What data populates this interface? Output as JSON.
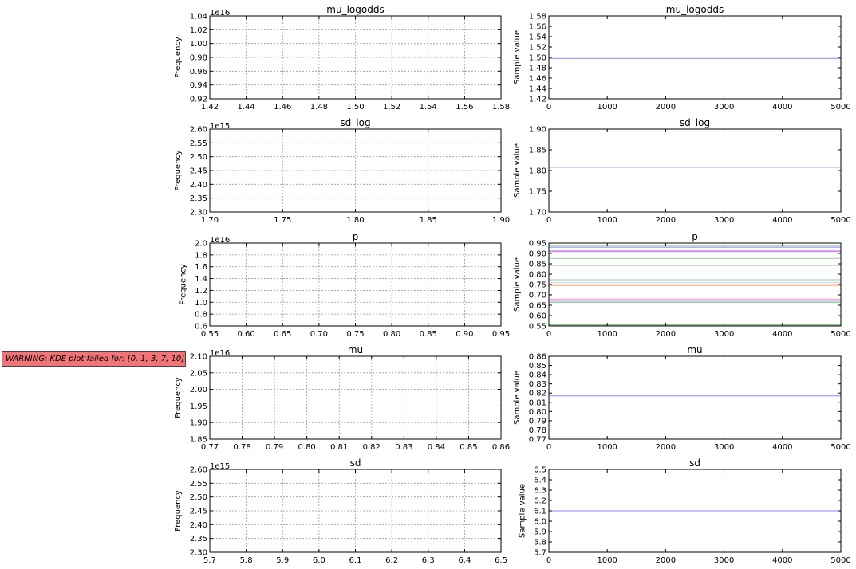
{
  "warning": "WARNING: KDE plot failed for: [0, 1, 3, 7, 10]",
  "chart_data": [
    {
      "type": "histogram",
      "title": "mu_logodds",
      "ylabel": "Frequency",
      "offset": "1e16",
      "xticks": [
        "1.42",
        "1.44",
        "1.46",
        "1.48",
        "1.50",
        "1.52",
        "1.54",
        "1.56",
        "1.58"
      ],
      "yticks": [
        "0.92",
        "0.94",
        "0.96",
        "0.98",
        "1.00",
        "1.02",
        "1.04"
      ],
      "grid": true,
      "series": []
    },
    {
      "type": "line",
      "title": "mu_logodds",
      "ylabel": "Sample value",
      "xticks": [
        "0",
        "1000",
        "2000",
        "3000",
        "4000",
        "5000"
      ],
      "yticks": [
        "1.42",
        "1.44",
        "1.46",
        "1.48",
        "1.50",
        "1.52",
        "1.54",
        "1.56",
        "1.58"
      ],
      "xlim": [
        0,
        5000
      ],
      "ylim": [
        1.42,
        1.58
      ],
      "grid": false,
      "series": [
        {
          "value": 1.498,
          "color": "#8888ff"
        }
      ]
    },
    {
      "type": "histogram",
      "title": "sd_log",
      "ylabel": "Frequency",
      "offset": "1e15",
      "xticks": [
        "1.70",
        "1.75",
        "1.80",
        "1.85",
        "1.90"
      ],
      "yticks": [
        "2.30",
        "2.35",
        "2.40",
        "2.45",
        "2.50",
        "2.55",
        "2.60"
      ],
      "grid": true,
      "series": []
    },
    {
      "type": "line",
      "title": "sd_log",
      "ylabel": "Sample value",
      "xticks": [
        "0",
        "1000",
        "2000",
        "3000",
        "4000",
        "5000"
      ],
      "yticks": [
        "1.70",
        "1.75",
        "1.80",
        "1.85",
        "1.90"
      ],
      "xlim": [
        0,
        5000
      ],
      "ylim": [
        1.7,
        1.9
      ],
      "grid": false,
      "series": [
        {
          "value": 1.808,
          "color": "#8888ff"
        }
      ]
    },
    {
      "type": "histogram",
      "title": "p",
      "ylabel": "Frequency",
      "offset": "1e16",
      "xticks": [
        "0.55",
        "0.60",
        "0.65",
        "0.70",
        "0.75",
        "0.80",
        "0.85",
        "0.90",
        "0.95"
      ],
      "yticks": [
        "0.6",
        "0.8",
        "1.0",
        "1.2",
        "1.4",
        "1.6",
        "1.8",
        "2.0"
      ],
      "grid": true,
      "series": []
    },
    {
      "type": "line",
      "title": "p",
      "ylabel": "Sample value",
      "xticks": [
        "0",
        "1000",
        "2000",
        "3000",
        "4000",
        "5000"
      ],
      "yticks": [
        "0.55",
        "0.60",
        "0.65",
        "0.70",
        "0.75",
        "0.80",
        "0.85",
        "0.90",
        "0.95"
      ],
      "xlim": [
        0,
        5000
      ],
      "ylim": [
        0.55,
        0.95
      ],
      "grid": false,
      "series": [
        {
          "value": 0.935,
          "color": "#99cc99"
        },
        {
          "value": 0.93,
          "color": "#9999ff"
        },
        {
          "value": 0.912,
          "color": "#ff66cc"
        },
        {
          "value": 0.909,
          "color": "#9999ff"
        },
        {
          "value": 0.876,
          "color": "#99cc99"
        },
        {
          "value": 0.843,
          "color": "#66aa66"
        },
        {
          "value": 0.773,
          "color": "#99cc99"
        },
        {
          "value": 0.76,
          "color": "#ccccff"
        },
        {
          "value": 0.751,
          "color": "#ffdd88"
        },
        {
          "value": 0.745,
          "color": "#ffaaaa"
        },
        {
          "value": 0.68,
          "color": "#ff99cc"
        },
        {
          "value": 0.673,
          "color": "#9999ff"
        },
        {
          "value": 0.665,
          "color": "#66aa66"
        },
        {
          "value": 0.555,
          "color": "#66aa66"
        }
      ]
    },
    {
      "type": "histogram",
      "title": "mu",
      "ylabel": "Frequency",
      "offset": "1e16",
      "xticks": [
        "0.77",
        "0.78",
        "0.79",
        "0.80",
        "0.81",
        "0.82",
        "0.83",
        "0.84",
        "0.85",
        "0.86"
      ],
      "yticks": [
        "1.85",
        "1.90",
        "1.95",
        "2.00",
        "2.05",
        "2.10"
      ],
      "grid": true,
      "series": []
    },
    {
      "type": "line",
      "title": "mu",
      "ylabel": "Sample value",
      "xticks": [
        "0",
        "1000",
        "2000",
        "3000",
        "4000",
        "5000"
      ],
      "yticks": [
        "0.77",
        "0.78",
        "0.79",
        "0.80",
        "0.81",
        "0.82",
        "0.83",
        "0.84",
        "0.85",
        "0.86"
      ],
      "xlim": [
        0,
        5000
      ],
      "ylim": [
        0.77,
        0.86
      ],
      "grid": false,
      "series": [
        {
          "value": 0.817,
          "color": "#8888ff"
        }
      ]
    },
    {
      "type": "histogram",
      "title": "sd",
      "ylabel": "Frequency",
      "offset": "1e15",
      "xticks": [
        "5.7",
        "5.8",
        "5.9",
        "6.0",
        "6.1",
        "6.2",
        "6.3",
        "6.4",
        "6.5"
      ],
      "yticks": [
        "2.30",
        "2.35",
        "2.40",
        "2.45",
        "2.50",
        "2.55",
        "2.60"
      ],
      "grid": true,
      "series": []
    },
    {
      "type": "line",
      "title": "sd",
      "ylabel": "Sample value",
      "xticks": [
        "0",
        "1000",
        "2000",
        "3000",
        "4000",
        "5000"
      ],
      "yticks": [
        "5.7",
        "5.8",
        "5.9",
        "6.0",
        "6.1",
        "6.2",
        "6.3",
        "6.4",
        "6.5"
      ],
      "xlim": [
        0,
        5000
      ],
      "ylim": [
        5.7,
        6.5
      ],
      "grid": false,
      "series": [
        {
          "value": 6.1,
          "color": "#8888ff"
        }
      ]
    }
  ]
}
